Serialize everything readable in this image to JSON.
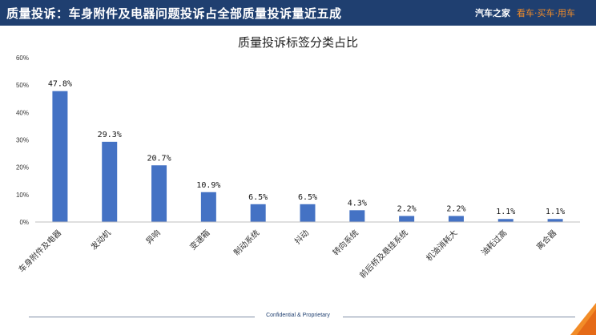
{
  "header": {
    "title": "质量投诉：车身附件及电器问题投诉占全部质量投诉量近五成",
    "brand_name": "汽车之家",
    "brand_slogan": "看车·买车·用车"
  },
  "footer": {
    "text": "Confidential & Proprietary"
  },
  "colors": {
    "header_bg": "#1f3f70",
    "bar": "#4472c4",
    "accent": "#f28c28"
  },
  "chart_data": {
    "type": "bar",
    "title": "质量投诉标签分类占比",
    "categories": [
      "车身附件及电器",
      "发动机",
      "异响",
      "变速箱",
      "制动系统",
      "抖动",
      "转向系统",
      "前后桥及悬挂系统",
      "机油消耗大",
      "油耗过高",
      "离合器"
    ],
    "values": [
      47.8,
      29.3,
      20.7,
      10.9,
      6.5,
      6.5,
      4.3,
      2.2,
      2.2,
      1.1,
      1.1
    ],
    "value_labels": [
      "47.8%",
      "29.3%",
      "20.7%",
      "10.9%",
      "6.5%",
      "6.5%",
      "4.3%",
      "2.2%",
      "2.2%",
      "1.1%",
      "1.1%"
    ],
    "yticks": [
      "0%",
      "10%",
      "20%",
      "30%",
      "40%",
      "50%",
      "60%"
    ],
    "ylim": [
      0,
      60
    ],
    "xlabel": "",
    "ylabel": "",
    "grid": false,
    "legend": "none"
  }
}
